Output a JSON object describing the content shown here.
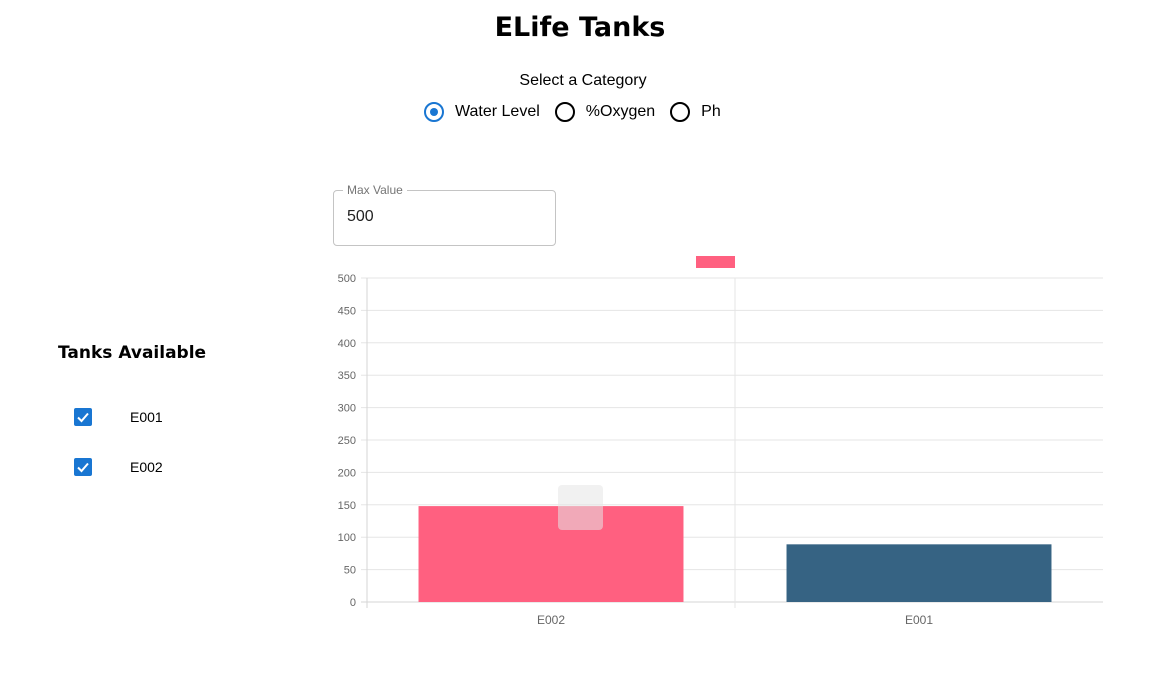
{
  "page": {
    "title": "ELife Tanks"
  },
  "category": {
    "label": "Select a Category",
    "options": [
      "Water Level",
      "%Oxygen",
      "Ph"
    ],
    "selected": "Water Level"
  },
  "max_value": {
    "label": "Max Value",
    "value": "500"
  },
  "tanks": {
    "title": "Tanks Available",
    "items": [
      {
        "label": "E001",
        "checked": true
      },
      {
        "label": "E002",
        "checked": true
      }
    ]
  },
  "chart_data": {
    "type": "bar",
    "categories": [
      "E002",
      "E001"
    ],
    "values": [
      148,
      89
    ],
    "colors": [
      "#ff6080",
      "#366383"
    ],
    "legend_color": "#ff6080",
    "ylim": [
      0,
      500
    ],
    "yticks": [
      0,
      50,
      100,
      150,
      200,
      250,
      300,
      350,
      400,
      450,
      500
    ],
    "grid": true,
    "legend_placement": "top"
  }
}
